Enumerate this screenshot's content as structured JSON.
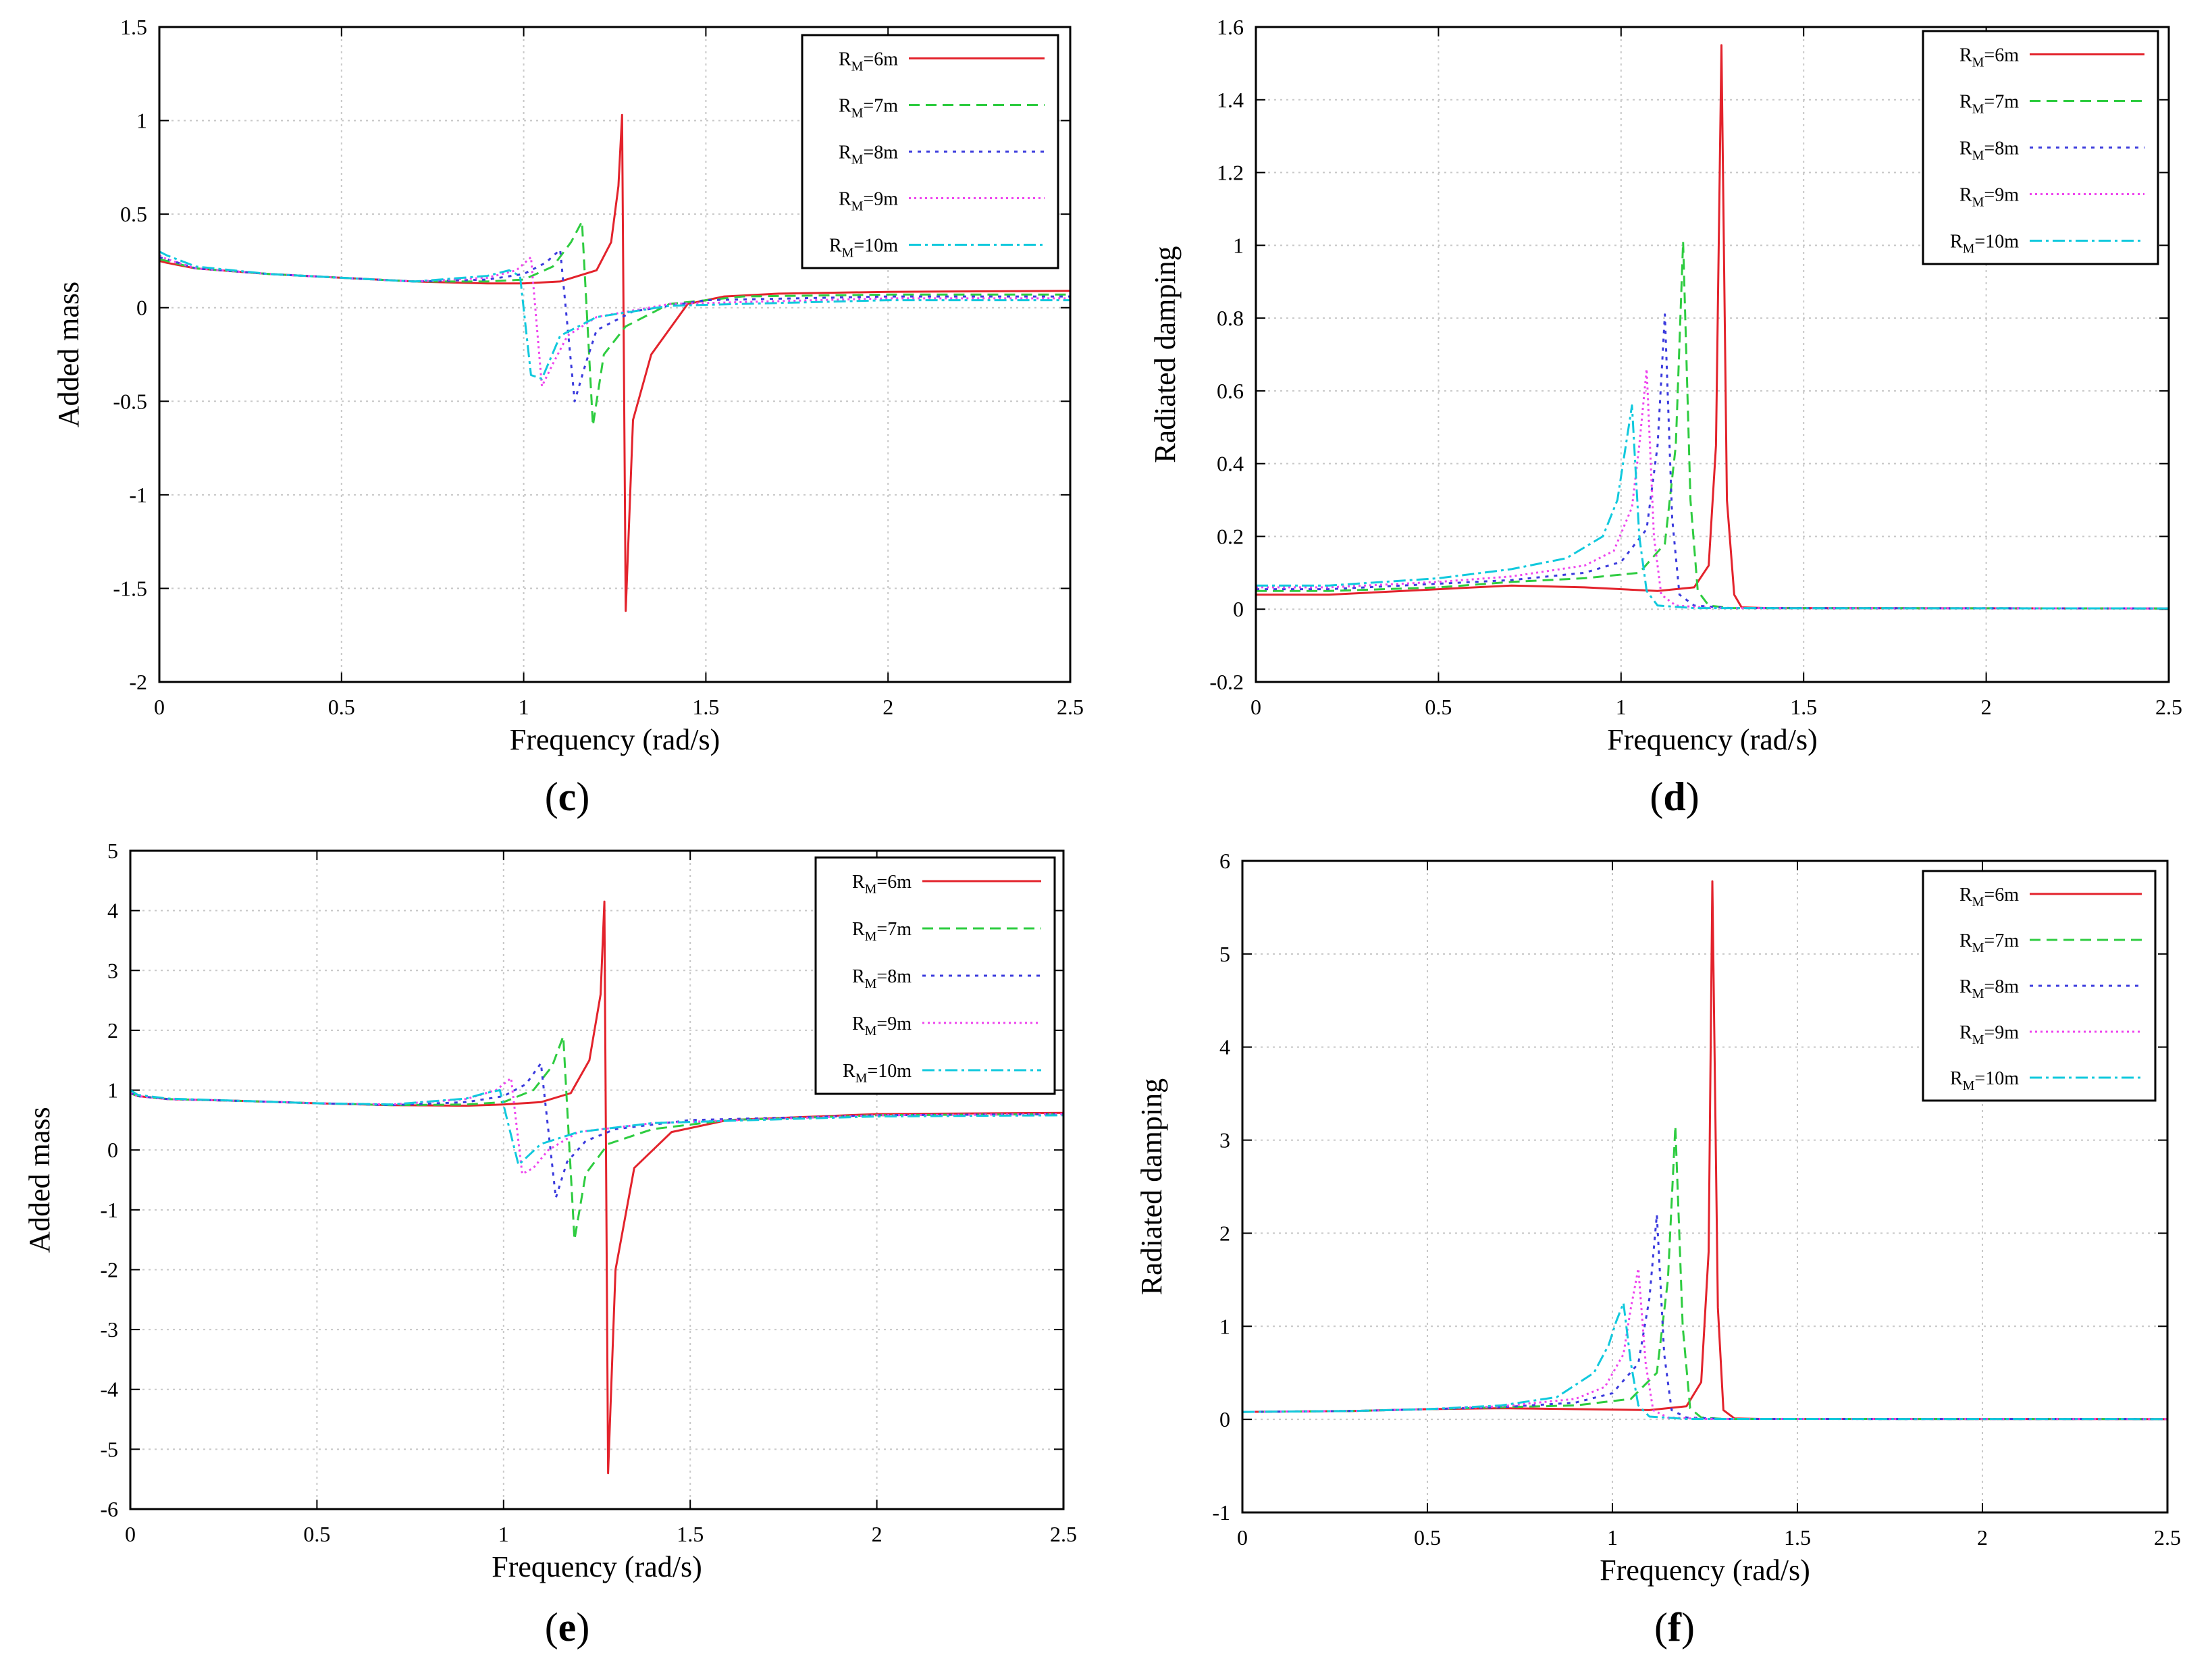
{
  "chart_data": [
    {
      "panel": "(c)",
      "type": "line",
      "panel_label": {
        "open": "(",
        "letter": "c",
        "close": ")"
      },
      "xlabel": "Frequency (rad/s)",
      "ylabel": "Added mass",
      "xlim": [
        0,
        2.5
      ],
      "ylim": [
        -2,
        1.5
      ],
      "xticks": [
        0,
        0.5,
        1,
        1.5,
        2,
        2.5
      ],
      "yticks": [
        -2,
        -1.5,
        -1,
        -0.5,
        0,
        0.5,
        1,
        1.5
      ],
      "grid": true,
      "legend_position": "top-right",
      "series": [
        {
          "name": "RM=6m",
          "sub": "M",
          "label_pre": "R",
          "label_post": "=6m",
          "color": "#e3232c",
          "dash": "solid",
          "x": [
            0,
            0.02,
            0.1,
            0.3,
            0.5,
            0.7,
            0.9,
            1.0,
            1.1,
            1.2,
            1.24,
            1.26,
            1.27,
            1.28,
            1.3,
            1.35,
            1.45,
            1.55,
            1.7,
            2.0,
            2.5
          ],
          "y": [
            0.25,
            0.24,
            0.21,
            0.18,
            0.16,
            0.14,
            0.13,
            0.13,
            0.14,
            0.2,
            0.35,
            0.65,
            1.03,
            -1.62,
            -0.6,
            -0.25,
            0.02,
            0.06,
            0.075,
            0.085,
            0.09
          ]
        },
        {
          "name": "RM=7m",
          "sub": "M",
          "label_pre": "R",
          "label_post": "=7m",
          "color": "#2ecc40",
          "dash": "16,9",
          "x": [
            0,
            0.02,
            0.1,
            0.3,
            0.5,
            0.7,
            0.9,
            1.0,
            1.08,
            1.13,
            1.16,
            1.19,
            1.22,
            1.28,
            1.4,
            1.6,
            2.0,
            2.5
          ],
          "y": [
            0.26,
            0.25,
            0.21,
            0.18,
            0.16,
            0.14,
            0.14,
            0.15,
            0.22,
            0.35,
            0.46,
            -0.63,
            -0.25,
            -0.1,
            0.02,
            0.06,
            0.07,
            0.07
          ]
        },
        {
          "name": "RM=8m",
          "sub": "M",
          "label_pre": "R",
          "label_post": "=8m",
          "color": "#3b3bdd",
          "dash": "5,8",
          "x": [
            0,
            0.02,
            0.1,
            0.3,
            0.5,
            0.7,
            0.9,
            1.0,
            1.06,
            1.1,
            1.14,
            1.17,
            1.2,
            1.3,
            1.5,
            2.0,
            2.5
          ],
          "y": [
            0.27,
            0.26,
            0.21,
            0.18,
            0.16,
            0.14,
            0.15,
            0.18,
            0.24,
            0.31,
            -0.5,
            -0.3,
            -0.12,
            -0.02,
            0.04,
            0.06,
            0.06
          ]
        },
        {
          "name": "RM=9m",
          "sub": "M",
          "label_pre": "R",
          "label_post": "=9m",
          "color": "#ee44ee",
          "dash": "3,5",
          "x": [
            0,
            0.02,
            0.1,
            0.3,
            0.5,
            0.7,
            0.9,
            0.98,
            1.02,
            1.05,
            1.08,
            1.12,
            1.2,
            1.4,
            2.0,
            2.5
          ],
          "y": [
            0.28,
            0.26,
            0.21,
            0.18,
            0.16,
            0.14,
            0.16,
            0.2,
            0.27,
            -0.42,
            -0.3,
            -0.15,
            -0.05,
            0.02,
            0.05,
            0.05
          ]
        },
        {
          "name": "RM=10m",
          "sub": "M",
          "label_pre": "R",
          "label_post": "=10m",
          "color": "#11c9dd",
          "dash": "18,6,4,6",
          "x": [
            0,
            0.02,
            0.1,
            0.3,
            0.5,
            0.7,
            0.9,
            0.96,
            0.99,
            1.02,
            1.05,
            1.1,
            1.2,
            1.4,
            2.0,
            2.5
          ],
          "y": [
            0.3,
            0.28,
            0.22,
            0.18,
            0.16,
            0.14,
            0.17,
            0.2,
            0.17,
            -0.36,
            -0.38,
            -0.15,
            -0.05,
            0.01,
            0.04,
            0.04
          ]
        }
      ]
    },
    {
      "panel": "(d)",
      "type": "line",
      "panel_label": {
        "open": "(",
        "letter": "d",
        "close": ")"
      },
      "xlabel": "Frequency (rad/s)",
      "ylabel": "Radiated damping",
      "xlim": [
        0,
        2.5
      ],
      "ylim": [
        -0.2,
        1.6
      ],
      "xticks": [
        0,
        0.5,
        1,
        1.5,
        2,
        2.5
      ],
      "yticks": [
        -0.2,
        0,
        0.2,
        0.4,
        0.6,
        0.8,
        1,
        1.2,
        1.4,
        1.6
      ],
      "grid": true,
      "legend_position": "top-right",
      "series": [
        {
          "name": "RM=6m",
          "sub": "M",
          "label_pre": "R",
          "label_post": "=6m",
          "color": "#e3232c",
          "dash": "solid",
          "x": [
            0,
            0.2,
            0.5,
            0.7,
            0.9,
            1.1,
            1.2,
            1.24,
            1.26,
            1.275,
            1.29,
            1.31,
            1.33,
            1.4,
            2.5
          ],
          "y": [
            0.04,
            0.04,
            0.055,
            0.065,
            0.06,
            0.05,
            0.06,
            0.12,
            0.45,
            1.55,
            0.3,
            0.04,
            0.005,
            0.003,
            0.002
          ]
        },
        {
          "name": "RM=7m",
          "sub": "M",
          "label_pre": "R",
          "label_post": "=7m",
          "color": "#2ecc40",
          "dash": "16,9",
          "x": [
            0,
            0.2,
            0.5,
            0.7,
            0.9,
            1.05,
            1.12,
            1.15,
            1.17,
            1.19,
            1.21,
            1.24,
            1.3,
            2.5
          ],
          "y": [
            0.05,
            0.05,
            0.06,
            0.075,
            0.085,
            0.1,
            0.18,
            0.45,
            1.01,
            0.3,
            0.05,
            0.01,
            0.003,
            0.002
          ]
        },
        {
          "name": "RM=8m",
          "sub": "M",
          "label_pre": "R",
          "label_post": "=8m",
          "color": "#3b3bdd",
          "dash": "5,8",
          "x": [
            0,
            0.2,
            0.5,
            0.7,
            0.9,
            1.0,
            1.07,
            1.1,
            1.12,
            1.14,
            1.16,
            1.2,
            1.3,
            2.5
          ],
          "y": [
            0.055,
            0.055,
            0.07,
            0.08,
            0.1,
            0.13,
            0.22,
            0.45,
            0.81,
            0.25,
            0.04,
            0.01,
            0.003,
            0.002
          ]
        },
        {
          "name": "RM=9m",
          "sub": "M",
          "label_pre": "R",
          "label_post": "=9m",
          "color": "#ee44ee",
          "dash": "3,5",
          "x": [
            0,
            0.2,
            0.5,
            0.7,
            0.9,
            0.98,
            1.03,
            1.05,
            1.07,
            1.09,
            1.11,
            1.15,
            1.25,
            2.5
          ],
          "y": [
            0.06,
            0.06,
            0.075,
            0.09,
            0.12,
            0.16,
            0.28,
            0.45,
            0.66,
            0.2,
            0.04,
            0.01,
            0.003,
            0.002
          ]
        },
        {
          "name": "RM=10m",
          "sub": "M",
          "label_pre": "R",
          "label_post": "=10m",
          "color": "#11c9dd",
          "dash": "18,6,4,6",
          "x": [
            0,
            0.2,
            0.5,
            0.7,
            0.85,
            0.95,
            0.99,
            1.01,
            1.03,
            1.05,
            1.07,
            1.1,
            1.2,
            2.5
          ],
          "y": [
            0.065,
            0.065,
            0.085,
            0.11,
            0.14,
            0.2,
            0.3,
            0.43,
            0.56,
            0.2,
            0.05,
            0.01,
            0.003,
            0.002
          ]
        }
      ]
    },
    {
      "panel": "(e)",
      "type": "line",
      "panel_label": {
        "open": "(",
        "letter": "e",
        "close": ")"
      },
      "xlabel": "Frequency (rad/s)",
      "ylabel": "Added mass",
      "xlim": [
        0,
        2.5
      ],
      "ylim": [
        -6,
        5
      ],
      "xticks": [
        0,
        0.5,
        1,
        1.5,
        2,
        2.5
      ],
      "yticks": [
        -6,
        -5,
        -4,
        -3,
        -2,
        -1,
        0,
        1,
        2,
        3,
        4,
        5
      ],
      "grid": true,
      "legend_position": "top-right",
      "series": [
        {
          "name": "RM=6m",
          "sub": "M",
          "label_pre": "R",
          "label_post": "=6m",
          "color": "#e3232c",
          "dash": "solid",
          "x": [
            0,
            0.02,
            0.1,
            0.3,
            0.5,
            0.7,
            0.9,
            1.0,
            1.1,
            1.18,
            1.23,
            1.26,
            1.27,
            1.28,
            1.3,
            1.35,
            1.45,
            1.6,
            2.0,
            2.5
          ],
          "y": [
            0.95,
            0.9,
            0.85,
            0.82,
            0.78,
            0.75,
            0.74,
            0.76,
            0.8,
            0.95,
            1.5,
            2.6,
            4.15,
            -5.4,
            -2.0,
            -0.3,
            0.3,
            0.5,
            0.6,
            0.62
          ]
        },
        {
          "name": "RM=7m",
          "sub": "M",
          "label_pre": "R",
          "label_post": "=7m",
          "color": "#2ecc40",
          "dash": "16,9",
          "x": [
            0,
            0.02,
            0.1,
            0.3,
            0.5,
            0.7,
            0.9,
            1.0,
            1.08,
            1.13,
            1.16,
            1.19,
            1.22,
            1.28,
            1.4,
            1.6,
            2.0,
            2.5
          ],
          "y": [
            0.95,
            0.9,
            0.85,
            0.82,
            0.78,
            0.75,
            0.76,
            0.8,
            1.0,
            1.4,
            1.9,
            -1.5,
            -0.4,
            0.1,
            0.35,
            0.5,
            0.58,
            0.6
          ]
        },
        {
          "name": "RM=8m",
          "sub": "M",
          "label_pre": "R",
          "label_post": "=8m",
          "color": "#3b3bdd",
          "dash": "5,8",
          "x": [
            0,
            0.02,
            0.1,
            0.3,
            0.5,
            0.7,
            0.9,
            1.0,
            1.06,
            1.1,
            1.14,
            1.17,
            1.22,
            1.3,
            1.5,
            2.0,
            2.5
          ],
          "y": [
            0.95,
            0.9,
            0.85,
            0.82,
            0.78,
            0.75,
            0.8,
            0.9,
            1.1,
            1.45,
            -0.8,
            -0.2,
            0.15,
            0.35,
            0.5,
            0.58,
            0.6
          ]
        },
        {
          "name": "RM=9m",
          "sub": "M",
          "label_pre": "R",
          "label_post": "=9m",
          "color": "#ee44ee",
          "dash": "3,5",
          "x": [
            0,
            0.02,
            0.1,
            0.3,
            0.5,
            0.7,
            0.9,
            0.98,
            1.02,
            1.05,
            1.08,
            1.12,
            1.2,
            1.4,
            2.0,
            2.5
          ],
          "y": [
            0.95,
            0.9,
            0.85,
            0.82,
            0.78,
            0.76,
            0.85,
            1.0,
            1.2,
            -0.4,
            -0.3,
            0.0,
            0.3,
            0.45,
            0.58,
            0.6
          ]
        },
        {
          "name": "RM=10m",
          "sub": "M",
          "label_pre": "R",
          "label_post": "=10m",
          "color": "#11c9dd",
          "dash": "18,6,4,6",
          "x": [
            0,
            0.02,
            0.1,
            0.3,
            0.5,
            0.7,
            0.9,
            0.95,
            0.99,
            1.01,
            1.04,
            1.1,
            1.2,
            1.4,
            2.0,
            2.5
          ],
          "y": [
            1.0,
            0.92,
            0.86,
            0.82,
            0.78,
            0.76,
            0.86,
            0.95,
            1.0,
            0.5,
            -0.25,
            0.1,
            0.3,
            0.45,
            0.56,
            0.58
          ]
        }
      ]
    },
    {
      "panel": "(f)",
      "type": "line",
      "panel_label": {
        "open": "(",
        "letter": "f",
        "close": ")"
      },
      "xlabel": "Frequency (rad/s)",
      "ylabel": "Radiated damping",
      "xlim": [
        0,
        2.5
      ],
      "ylim": [
        -1,
        6
      ],
      "xticks": [
        0,
        0.5,
        1,
        1.5,
        2,
        2.5
      ],
      "yticks": [
        -1,
        0,
        1,
        2,
        3,
        4,
        5,
        6
      ],
      "grid": true,
      "legend_position": "top-right",
      "series": [
        {
          "name": "RM=6m",
          "sub": "M",
          "label_pre": "R",
          "label_post": "=6m",
          "color": "#e3232c",
          "dash": "solid",
          "x": [
            0,
            0.3,
            0.5,
            0.7,
            0.9,
            1.1,
            1.2,
            1.24,
            1.26,
            1.27,
            1.285,
            1.3,
            1.33,
            1.4,
            2.5
          ],
          "y": [
            0.08,
            0.09,
            0.11,
            0.12,
            0.11,
            0.1,
            0.14,
            0.4,
            1.8,
            5.78,
            1.2,
            0.1,
            0.01,
            0.005,
            0.003
          ]
        },
        {
          "name": "RM=7m",
          "sub": "M",
          "label_pre": "R",
          "label_post": "=7m",
          "color": "#2ecc40",
          "dash": "16,9",
          "x": [
            0,
            0.3,
            0.5,
            0.7,
            0.9,
            1.05,
            1.12,
            1.15,
            1.17,
            1.19,
            1.21,
            1.24,
            1.3,
            2.5
          ],
          "y": [
            0.08,
            0.09,
            0.11,
            0.13,
            0.15,
            0.22,
            0.5,
            1.5,
            3.15,
            1.0,
            0.12,
            0.02,
            0.005,
            0.003
          ]
        },
        {
          "name": "RM=8m",
          "sub": "M",
          "label_pre": "R",
          "label_post": "=8m",
          "color": "#3b3bdd",
          "dash": "5,8",
          "x": [
            0,
            0.3,
            0.5,
            0.7,
            0.9,
            1.0,
            1.07,
            1.1,
            1.12,
            1.14,
            1.16,
            1.2,
            1.3,
            2.5
          ],
          "y": [
            0.08,
            0.09,
            0.11,
            0.13,
            0.18,
            0.28,
            0.6,
            1.3,
            2.2,
            0.7,
            0.1,
            0.02,
            0.005,
            0.003
          ]
        },
        {
          "name": "RM=9m",
          "sub": "M",
          "label_pre": "R",
          "label_post": "=9m",
          "color": "#ee44ee",
          "dash": "3,5",
          "x": [
            0,
            0.3,
            0.5,
            0.7,
            0.9,
            0.98,
            1.03,
            1.05,
            1.07,
            1.09,
            1.11,
            1.15,
            1.25,
            2.5
          ],
          "y": [
            0.08,
            0.09,
            0.11,
            0.14,
            0.22,
            0.35,
            0.7,
            1.2,
            1.62,
            0.6,
            0.1,
            0.02,
            0.005,
            0.003
          ]
        },
        {
          "name": "RM=10m",
          "sub": "M",
          "label_pre": "R",
          "label_post": "=10m",
          "color": "#11c9dd",
          "dash": "18,6,4,6",
          "x": [
            0,
            0.3,
            0.5,
            0.7,
            0.85,
            0.95,
            0.99,
            1.01,
            1.03,
            1.05,
            1.07,
            1.1,
            1.2,
            2.5
          ],
          "y": [
            0.08,
            0.09,
            0.11,
            0.15,
            0.24,
            0.5,
            0.8,
            1.05,
            1.25,
            0.6,
            0.15,
            0.03,
            0.005,
            0.003
          ]
        }
      ]
    }
  ]
}
